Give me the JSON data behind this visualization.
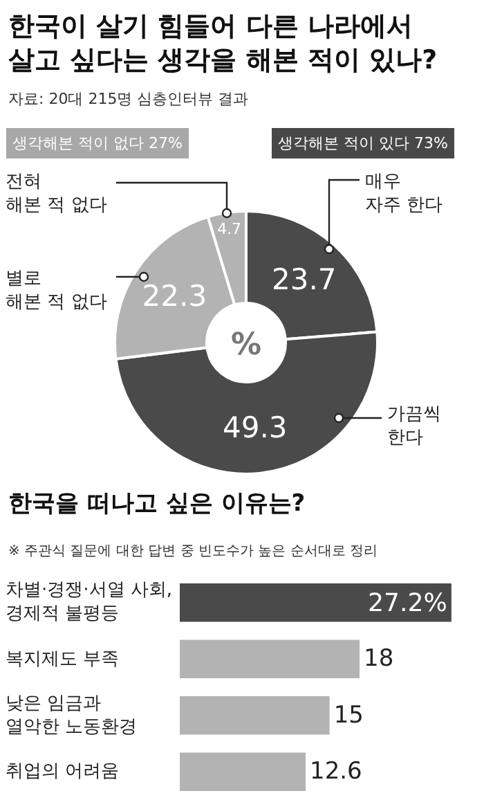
{
  "chart_data": [
    {
      "type": "donut",
      "title": "한국이 살기 힘들어 다른 나라에서\n살고 싶다는 생각을 해본 적이 있나?",
      "subtitle": "자료: 20대 215명 심층인터뷰 결과",
      "categories": [
        "매우\n자주 한다",
        "가끔씩\n한다",
        "별로\n해본 적 없다",
        "전혀\n해본 적 없다"
      ],
      "values": [
        23.7,
        49.3,
        22.3,
        4.7
      ],
      "colors": [
        "#4a4a4a",
        "#4a4a4a",
        "#b3b3b3",
        "#b3b3b3"
      ],
      "data_labels": true,
      "annotations": [
        "생각해본 적이 없다 27%",
        "생각해본 적이 있다 73%",
        "%"
      ]
    },
    {
      "type": "bar",
      "orientation": "horizontal",
      "title": "한국을 떠나고 싶은 이유는?",
      "subtitle": "※ 주관식 질문에 대한 답변 중 빈도수가 높은 순서대로 정리",
      "categories": [
        "차별·경쟁·서열 사회,\n경제적 불평등",
        "복지제도 부족",
        "낮은 임금과\n열악한 노동환경",
        "취업의 어려움"
      ],
      "values": [
        27.2,
        18,
        15,
        12.6
      ],
      "colors": [
        "#4a4a4a",
        "#b3b3b3",
        "#b3b3b3",
        "#b3b3b3"
      ],
      "value_labels": [
        "27.2%",
        "18",
        "15",
        "12.6"
      ]
    }
  ]
}
